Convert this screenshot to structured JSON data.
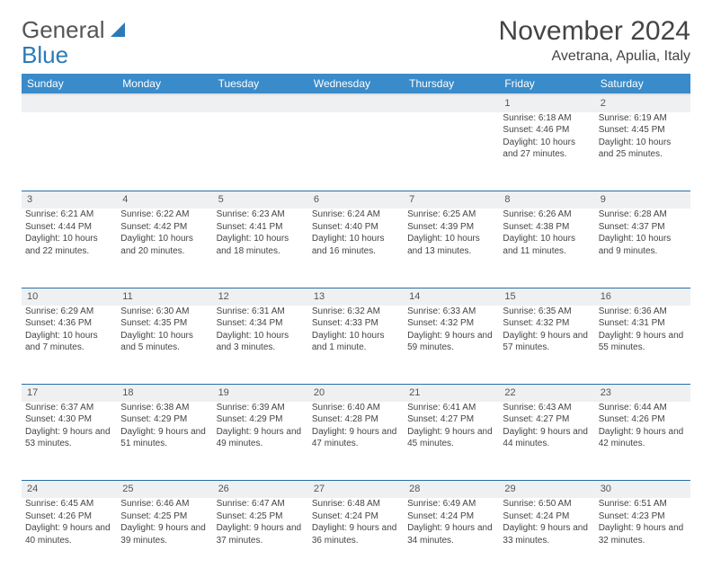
{
  "logo": {
    "text1": "General",
    "text2": "Blue"
  },
  "title": "November 2024",
  "location": "Avetrana, Apulia, Italy",
  "colors": {
    "header_bg": "#3a8bc9",
    "header_text": "#ffffff",
    "daynum_bg": "#eef0f2",
    "row_border": "#2a6fa5",
    "text": "#444444",
    "logo_gray": "#555555",
    "logo_blue": "#2a7ab9",
    "background": "#ffffff"
  },
  "days": [
    "Sunday",
    "Monday",
    "Tuesday",
    "Wednesday",
    "Thursday",
    "Friday",
    "Saturday"
  ],
  "weeks": [
    [
      {
        "n": "",
        "lines": []
      },
      {
        "n": "",
        "lines": []
      },
      {
        "n": "",
        "lines": []
      },
      {
        "n": "",
        "lines": []
      },
      {
        "n": "",
        "lines": []
      },
      {
        "n": "1",
        "lines": [
          "Sunrise: 6:18 AM",
          "Sunset: 4:46 PM",
          "Daylight: 10 hours and 27 minutes."
        ]
      },
      {
        "n": "2",
        "lines": [
          "Sunrise: 6:19 AM",
          "Sunset: 4:45 PM",
          "Daylight: 10 hours and 25 minutes."
        ]
      }
    ],
    [
      {
        "n": "3",
        "lines": [
          "Sunrise: 6:21 AM",
          "Sunset: 4:44 PM",
          "Daylight: 10 hours and 22 minutes."
        ]
      },
      {
        "n": "4",
        "lines": [
          "Sunrise: 6:22 AM",
          "Sunset: 4:42 PM",
          "Daylight: 10 hours and 20 minutes."
        ]
      },
      {
        "n": "5",
        "lines": [
          "Sunrise: 6:23 AM",
          "Sunset: 4:41 PM",
          "Daylight: 10 hours and 18 minutes."
        ]
      },
      {
        "n": "6",
        "lines": [
          "Sunrise: 6:24 AM",
          "Sunset: 4:40 PM",
          "Daylight: 10 hours and 16 minutes."
        ]
      },
      {
        "n": "7",
        "lines": [
          "Sunrise: 6:25 AM",
          "Sunset: 4:39 PM",
          "Daylight: 10 hours and 13 minutes."
        ]
      },
      {
        "n": "8",
        "lines": [
          "Sunrise: 6:26 AM",
          "Sunset: 4:38 PM",
          "Daylight: 10 hours and 11 minutes."
        ]
      },
      {
        "n": "9",
        "lines": [
          "Sunrise: 6:28 AM",
          "Sunset: 4:37 PM",
          "Daylight: 10 hours and 9 minutes."
        ]
      }
    ],
    [
      {
        "n": "10",
        "lines": [
          "Sunrise: 6:29 AM",
          "Sunset: 4:36 PM",
          "Daylight: 10 hours and 7 minutes."
        ]
      },
      {
        "n": "11",
        "lines": [
          "Sunrise: 6:30 AM",
          "Sunset: 4:35 PM",
          "Daylight: 10 hours and 5 minutes."
        ]
      },
      {
        "n": "12",
        "lines": [
          "Sunrise: 6:31 AM",
          "Sunset: 4:34 PM",
          "Daylight: 10 hours and 3 minutes."
        ]
      },
      {
        "n": "13",
        "lines": [
          "Sunrise: 6:32 AM",
          "Sunset: 4:33 PM",
          "Daylight: 10 hours and 1 minute."
        ]
      },
      {
        "n": "14",
        "lines": [
          "Sunrise: 6:33 AM",
          "Sunset: 4:32 PM",
          "Daylight: 9 hours and 59 minutes."
        ]
      },
      {
        "n": "15",
        "lines": [
          "Sunrise: 6:35 AM",
          "Sunset: 4:32 PM",
          "Daylight: 9 hours and 57 minutes."
        ]
      },
      {
        "n": "16",
        "lines": [
          "Sunrise: 6:36 AM",
          "Sunset: 4:31 PM",
          "Daylight: 9 hours and 55 minutes."
        ]
      }
    ],
    [
      {
        "n": "17",
        "lines": [
          "Sunrise: 6:37 AM",
          "Sunset: 4:30 PM",
          "Daylight: 9 hours and 53 minutes."
        ]
      },
      {
        "n": "18",
        "lines": [
          "Sunrise: 6:38 AM",
          "Sunset: 4:29 PM",
          "Daylight: 9 hours and 51 minutes."
        ]
      },
      {
        "n": "19",
        "lines": [
          "Sunrise: 6:39 AM",
          "Sunset: 4:29 PM",
          "Daylight: 9 hours and 49 minutes."
        ]
      },
      {
        "n": "20",
        "lines": [
          "Sunrise: 6:40 AM",
          "Sunset: 4:28 PM",
          "Daylight: 9 hours and 47 minutes."
        ]
      },
      {
        "n": "21",
        "lines": [
          "Sunrise: 6:41 AM",
          "Sunset: 4:27 PM",
          "Daylight: 9 hours and 45 minutes."
        ]
      },
      {
        "n": "22",
        "lines": [
          "Sunrise: 6:43 AM",
          "Sunset: 4:27 PM",
          "Daylight: 9 hours and 44 minutes."
        ]
      },
      {
        "n": "23",
        "lines": [
          "Sunrise: 6:44 AM",
          "Sunset: 4:26 PM",
          "Daylight: 9 hours and 42 minutes."
        ]
      }
    ],
    [
      {
        "n": "24",
        "lines": [
          "Sunrise: 6:45 AM",
          "Sunset: 4:26 PM",
          "Daylight: 9 hours and 40 minutes."
        ]
      },
      {
        "n": "25",
        "lines": [
          "Sunrise: 6:46 AM",
          "Sunset: 4:25 PM",
          "Daylight: 9 hours and 39 minutes."
        ]
      },
      {
        "n": "26",
        "lines": [
          "Sunrise: 6:47 AM",
          "Sunset: 4:25 PM",
          "Daylight: 9 hours and 37 minutes."
        ]
      },
      {
        "n": "27",
        "lines": [
          "Sunrise: 6:48 AM",
          "Sunset: 4:24 PM",
          "Daylight: 9 hours and 36 minutes."
        ]
      },
      {
        "n": "28",
        "lines": [
          "Sunrise: 6:49 AM",
          "Sunset: 4:24 PM",
          "Daylight: 9 hours and 34 minutes."
        ]
      },
      {
        "n": "29",
        "lines": [
          "Sunrise: 6:50 AM",
          "Sunset: 4:24 PM",
          "Daylight: 9 hours and 33 minutes."
        ]
      },
      {
        "n": "30",
        "lines": [
          "Sunrise: 6:51 AM",
          "Sunset: 4:23 PM",
          "Daylight: 9 hours and 32 minutes."
        ]
      }
    ]
  ]
}
